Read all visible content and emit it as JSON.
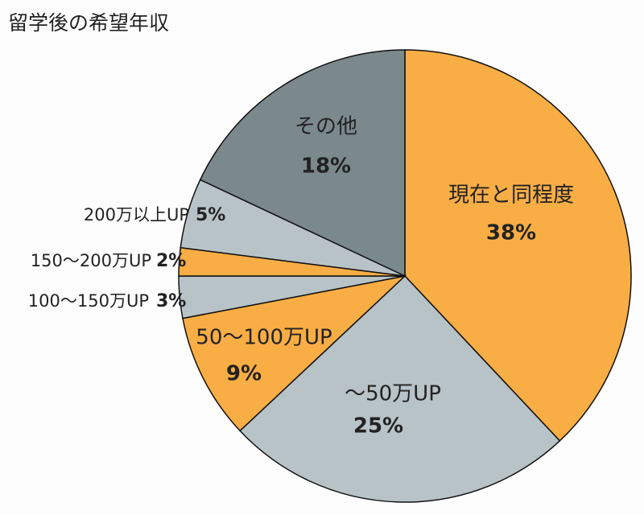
{
  "chart_data": {
    "type": "pie",
    "title": "留学後の希望年収",
    "categories": [
      "現在と同程度",
      "〜50万UP",
      "50〜100万UP",
      "100〜150万UP",
      "150〜200万UP",
      "200万以上UP",
      "その他"
    ],
    "values": [
      38,
      25,
      9,
      3,
      2,
      5,
      18
    ],
    "value_labels": [
      "38%",
      "25%",
      "9%",
      "3%",
      "2%",
      "5%",
      "18%"
    ],
    "colors": [
      "#f8ad45",
      "#b8c3c7",
      "#f8ad45",
      "#b8c3c7",
      "#f8ad45",
      "#b8c3c7",
      "#7b888c"
    ]
  }
}
